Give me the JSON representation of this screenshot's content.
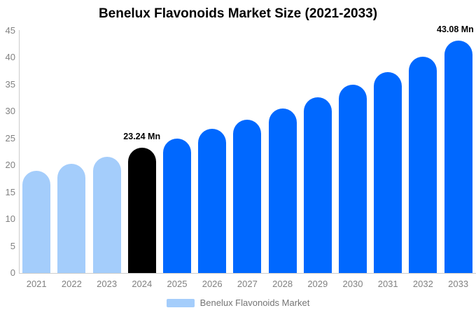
{
  "chart_data": {
    "type": "bar",
    "title": "Benelux Flavonoids Market Size (2021-2033)",
    "unit": "Mn",
    "categories": [
      "2021",
      "2022",
      "2023",
      "2024",
      "2025",
      "2026",
      "2027",
      "2028",
      "2029",
      "2030",
      "2031",
      "2032",
      "2033"
    ],
    "values": [
      18.9,
      20.2,
      21.6,
      23.24,
      24.9,
      26.7,
      28.5,
      30.5,
      32.6,
      35.0,
      37.3,
      40.1,
      43.08
    ],
    "bar_colors": [
      "#a4cdfb",
      "#a4cdfb",
      "#a4cdfb",
      "#000000",
      "#0068ff",
      "#0068ff",
      "#0068ff",
      "#0068ff",
      "#0068ff",
      "#0068ff",
      "#0068ff",
      "#0068ff",
      "#0068ff"
    ],
    "data_labels": [
      {
        "category": "2024",
        "text": "23.24 Mn"
      },
      {
        "category": "2033",
        "text": "43.08 Mn"
      }
    ],
    "ylim": [
      0,
      45
    ],
    "yticks": [
      0,
      5,
      10,
      15,
      20,
      25,
      30,
      35,
      40,
      45
    ],
    "xlabel": "",
    "ylabel": "",
    "grid": false,
    "legend_position": "bottom",
    "legend_entries": [
      {
        "label": "Benelux Flavonoids Market",
        "swatch_color": "#a4cdfb"
      }
    ],
    "colors": {
      "series_default": "#0068ff",
      "series_historical": "#a4cdfb",
      "series_highlight": "#000000",
      "axis_line": "#cccccc",
      "tick_text": "#818181"
    }
  }
}
